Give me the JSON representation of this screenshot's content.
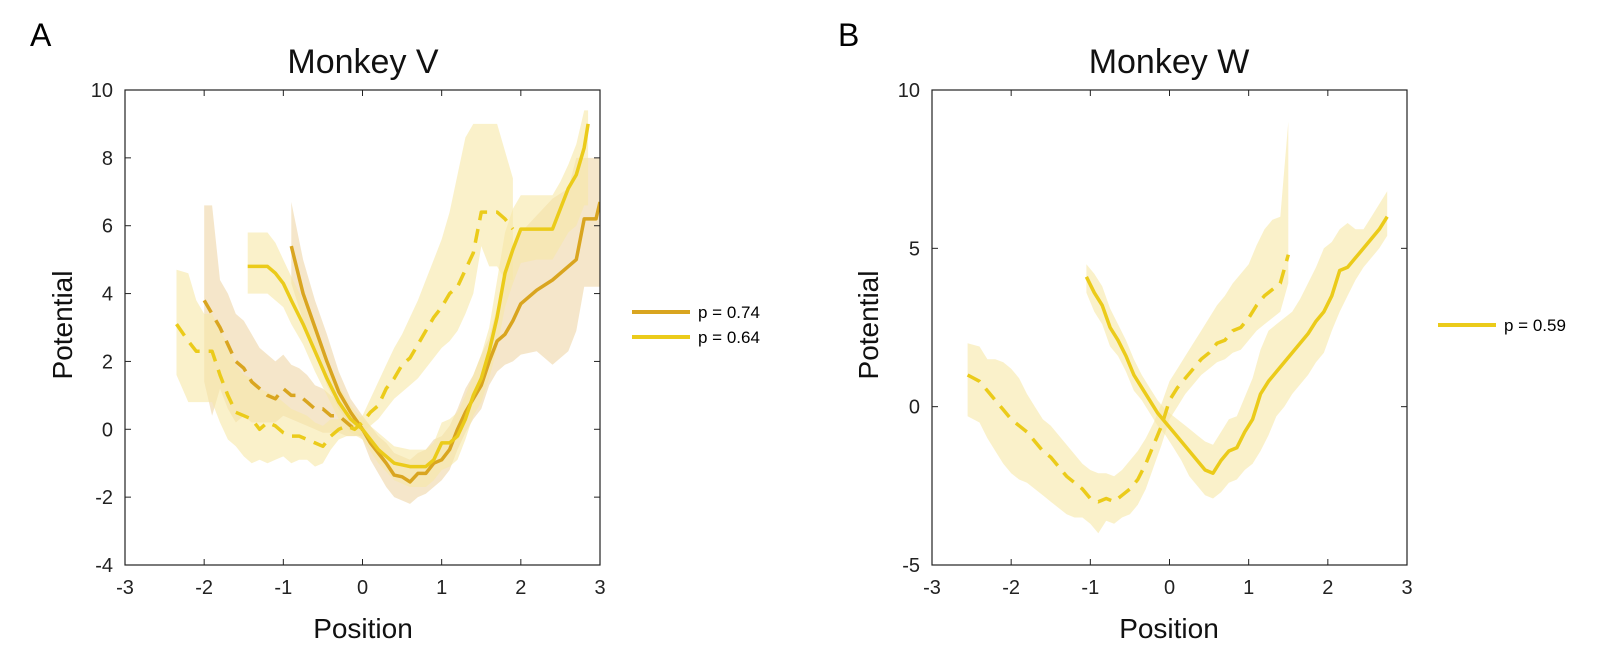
{
  "panels": [
    {
      "label": "A"
    },
    {
      "label": "B"
    }
  ],
  "colors": {
    "dark_gold": "#D9A520",
    "gold": "#EBCB1A",
    "shade_dark": "#EFD6A6",
    "shade_light": "#F7E7A6"
  },
  "chart_data": [
    {
      "type": "line",
      "title": "Monkey V",
      "xlabel": "Position",
      "ylabel": "Potential",
      "xlim": [
        -3,
        3
      ],
      "ylim": [
        -4,
        10
      ],
      "xticks": [
        -3,
        -2,
        -1,
        0,
        1,
        2,
        3
      ],
      "yticks": [
        -4,
        -2,
        0,
        2,
        4,
        6,
        8,
        10
      ],
      "grid": false,
      "legend_placement": "right",
      "series": [
        {
          "name": "p = 0.74",
          "color": "#D9A520",
          "style": "solid",
          "x": [
            -0.9,
            -0.75,
            -0.6,
            -0.45,
            -0.3,
            -0.15,
            0.0,
            0.1,
            0.2,
            0.3,
            0.4,
            0.5,
            0.6,
            0.7,
            0.8,
            0.9,
            1.0,
            1.1,
            1.2,
            1.3,
            1.4,
            1.5,
            1.6,
            1.7,
            1.8,
            1.9,
            2.0,
            2.2,
            2.4,
            2.6,
            2.7,
            2.8,
            2.95,
            3.0
          ],
          "y": [
            5.4,
            4.0,
            3.0,
            2.0,
            1.1,
            0.5,
            0.0,
            -0.4,
            -0.7,
            -1.0,
            -1.35,
            -1.4,
            -1.55,
            -1.3,
            -1.3,
            -1.0,
            -0.9,
            -0.6,
            0.0,
            0.5,
            0.9,
            1.3,
            2.0,
            2.6,
            2.8,
            3.2,
            3.7,
            4.1,
            4.4,
            4.8,
            5.0,
            6.2,
            6.2,
            6.7
          ],
          "band_low": [
            4.3,
            3.2,
            2.3,
            1.3,
            0.6,
            0.1,
            -0.3,
            -0.9,
            -1.3,
            -1.7,
            -2.0,
            -2.1,
            -2.2,
            -2.0,
            -1.9,
            -1.7,
            -1.5,
            -1.2,
            -0.6,
            -0.1,
            0.3,
            0.6,
            1.3,
            1.7,
            1.9,
            2.0,
            2.2,
            2.3,
            1.9,
            2.3,
            2.9,
            4.2,
            4.2,
            4.2
          ],
          "band_high": [
            6.7,
            5.0,
            3.8,
            2.8,
            1.7,
            0.9,
            0.4,
            0.1,
            -0.2,
            -0.4,
            -0.7,
            -0.8,
            -0.9,
            -0.7,
            -0.6,
            -0.3,
            -0.2,
            0.1,
            0.6,
            1.2,
            1.6,
            2.2,
            2.7,
            3.6,
            4.5,
            5.2,
            5.8,
            6.3,
            6.8,
            7.1,
            8.0,
            8.0,
            8.0,
            8.0
          ]
        },
        {
          "name": "",
          "color": "#D9A520",
          "style": "dashed",
          "x": [
            -2.0,
            -1.9,
            -1.8,
            -1.7,
            -1.6,
            -1.5,
            -1.4,
            -1.3,
            -1.2,
            -1.1,
            -1.0,
            -0.9,
            -0.8,
            -0.7,
            -0.6,
            -0.5,
            -0.4,
            -0.3,
            -0.2,
            -0.1,
            0.0
          ],
          "y": [
            3.8,
            3.4,
            3.0,
            2.5,
            2.0,
            1.8,
            1.4,
            1.2,
            1.0,
            0.9,
            1.2,
            1.0,
            1.0,
            0.8,
            0.6,
            0.6,
            0.4,
            0.4,
            0.2,
            0.0,
            0.0
          ],
          "band_low": [
            1.4,
            0.4,
            1.2,
            0.6,
            0.2,
            0.4,
            0.2,
            0.2,
            0.2,
            0.2,
            0.4,
            0.3,
            0.2,
            0.1,
            0.0,
            -0.1,
            -0.1,
            -0.1,
            -0.2,
            -0.2,
            -0.2
          ],
          "band_high": [
            6.6,
            6.6,
            4.4,
            4.0,
            3.4,
            3.2,
            2.8,
            2.4,
            2.2,
            2.0,
            2.2,
            1.9,
            1.8,
            1.6,
            1.3,
            1.2,
            1.0,
            0.8,
            0.5,
            0.3,
            0.2
          ]
        },
        {
          "name": "p = 0.64",
          "color": "#EBCB1A",
          "style": "solid",
          "x": [
            -1.45,
            -1.2,
            -1.1,
            -1.0,
            -0.9,
            -0.75,
            -0.6,
            -0.45,
            -0.3,
            -0.15,
            0.0,
            0.2,
            0.4,
            0.6,
            0.8,
            0.9,
            1.0,
            1.1,
            1.2,
            1.3,
            1.4,
            1.5,
            1.6,
            1.7,
            1.8,
            1.9,
            2.0,
            2.2,
            2.4,
            2.5,
            2.6,
            2.7,
            2.8,
            2.85
          ],
          "y": [
            4.8,
            4.8,
            4.6,
            4.3,
            3.8,
            3.1,
            2.3,
            1.5,
            0.8,
            0.3,
            0.0,
            -0.6,
            -1.0,
            -1.1,
            -1.1,
            -0.9,
            -0.4,
            -0.4,
            -0.2,
            0.3,
            1.0,
            1.5,
            2.3,
            3.3,
            4.6,
            5.3,
            5.9,
            5.9,
            5.9,
            6.5,
            7.1,
            7.5,
            8.3,
            9.0
          ],
          "band_low": [
            4.0,
            4.0,
            3.8,
            3.6,
            3.1,
            2.5,
            1.7,
            1.0,
            0.3,
            -0.1,
            -0.3,
            -1.0,
            -1.5,
            -1.7,
            -1.7,
            -1.5,
            -1.2,
            -1.1,
            -0.9,
            -0.3,
            0.4,
            0.8,
            1.5,
            2.4,
            3.6,
            4.3,
            4.9,
            5.0,
            5.0,
            5.4,
            5.8,
            6.0,
            6.6,
            6.6
          ],
          "band_high": [
            5.8,
            5.8,
            5.5,
            5.0,
            4.5,
            3.8,
            2.9,
            2.0,
            1.3,
            0.7,
            0.3,
            -0.1,
            -0.5,
            -0.6,
            -0.6,
            -0.4,
            0.2,
            0.3,
            0.5,
            1.0,
            1.6,
            2.2,
            3.0,
            4.4,
            5.8,
            6.5,
            6.9,
            6.9,
            6.9,
            7.3,
            7.8,
            8.4,
            9.4,
            9.4
          ]
        },
        {
          "name": "",
          "color": "#EBCB1A",
          "style": "dashed",
          "x": [
            -2.35,
            -2.2,
            -2.1,
            -2.0,
            -1.9,
            -1.8,
            -1.7,
            -1.6,
            -1.5,
            -1.4,
            -1.3,
            -1.2,
            -1.1,
            -1.0,
            -0.9,
            -0.8,
            -0.7,
            -0.6,
            -0.5,
            -0.4,
            -0.3,
            -0.2,
            -0.1,
            0.0,
            0.1,
            0.2,
            0.3,
            0.4,
            0.5,
            0.6,
            0.7,
            0.8,
            0.9,
            1.0,
            1.1,
            1.2,
            1.3,
            1.4,
            1.5,
            1.6,
            1.7,
            1.8,
            1.9
          ],
          "y": [
            3.1,
            2.6,
            2.3,
            2.3,
            2.3,
            1.6,
            1.0,
            0.5,
            0.4,
            0.3,
            0.0,
            0.2,
            0.1,
            -0.1,
            -0.2,
            -0.2,
            -0.3,
            -0.4,
            -0.5,
            -0.2,
            0.0,
            0.1,
            0.0,
            0.2,
            0.5,
            0.7,
            1.2,
            1.5,
            1.9,
            2.1,
            2.5,
            2.9,
            3.3,
            3.6,
            4.0,
            4.2,
            4.7,
            5.2,
            6.4,
            6.4,
            6.4,
            6.2,
            5.9
          ],
          "band_low": [
            1.6,
            0.8,
            0.8,
            0.8,
            0.8,
            0.2,
            -0.3,
            -0.5,
            -0.8,
            -1.0,
            -0.9,
            -1.0,
            -0.9,
            -0.8,
            -1.0,
            -0.9,
            -0.9,
            -1.1,
            -1.0,
            -0.6,
            -0.3,
            -0.2,
            -0.2,
            -0.1,
            0.1,
            0.3,
            0.6,
            0.9,
            1.1,
            1.3,
            1.5,
            1.8,
            2.1,
            2.4,
            2.6,
            2.9,
            3.4,
            4.0,
            5.4,
            4.8,
            4.8,
            4.4,
            4.4
          ],
          "band_high": [
            4.7,
            4.6,
            3.8,
            3.4,
            3.4,
            2.9,
            2.5,
            1.9,
            1.6,
            1.5,
            1.2,
            1.1,
            1.0,
            0.8,
            0.6,
            0.5,
            0.4,
            0.2,
            0.1,
            0.3,
            0.3,
            0.3,
            0.2,
            0.4,
            0.9,
            1.4,
            1.9,
            2.4,
            2.8,
            3.3,
            3.8,
            4.4,
            5.0,
            5.6,
            6.4,
            7.5,
            8.6,
            9.0,
            9.0,
            9.0,
            9.0,
            8.2,
            7.4
          ]
        }
      ],
      "legend": [
        {
          "label": "p = 0.74",
          "color": "#D9A520"
        },
        {
          "label": "p = 0.64",
          "color": "#EBCB1A"
        }
      ]
    },
    {
      "type": "line",
      "title": "Monkey W",
      "xlabel": "Position",
      "ylabel": "Potential",
      "xlim": [
        -3,
        3
      ],
      "ylim": [
        -5,
        10
      ],
      "xticks": [
        -3,
        -2,
        -1,
        0,
        1,
        2,
        3
      ],
      "yticks": [
        -5,
        0,
        5,
        10
      ],
      "grid": false,
      "legend_placement": "right",
      "series": [
        {
          "name": "p = 0.59",
          "color": "#EBCB1A",
          "style": "solid",
          "x": [
            -1.05,
            -0.95,
            -0.85,
            -0.75,
            -0.65,
            -0.55,
            -0.45,
            -0.35,
            -0.25,
            -0.15,
            -0.05,
            0.05,
            0.15,
            0.25,
            0.35,
            0.45,
            0.55,
            0.65,
            0.75,
            0.85,
            0.95,
            1.05,
            1.15,
            1.25,
            1.35,
            1.45,
            1.55,
            1.65,
            1.75,
            1.85,
            1.95,
            2.05,
            2.15,
            2.25,
            2.35,
            2.45,
            2.55,
            2.65,
            2.75
          ],
          "y": [
            4.1,
            3.6,
            3.2,
            2.5,
            2.1,
            1.6,
            1.0,
            0.6,
            0.2,
            -0.2,
            -0.5,
            -0.8,
            -1.1,
            -1.4,
            -1.7,
            -2.0,
            -2.1,
            -1.7,
            -1.4,
            -1.3,
            -0.8,
            -0.4,
            0.4,
            0.8,
            1.1,
            1.4,
            1.7,
            2.0,
            2.3,
            2.7,
            3.0,
            3.5,
            4.3,
            4.4,
            4.7,
            5.0,
            5.3,
            5.6,
            6.0
          ],
          "band_low": [
            3.6,
            3.0,
            2.6,
            1.9,
            1.6,
            1.1,
            0.5,
            0.2,
            -0.2,
            -0.6,
            -0.9,
            -1.3,
            -1.7,
            -2.2,
            -2.5,
            -2.8,
            -2.9,
            -2.7,
            -2.4,
            -2.3,
            -2.0,
            -1.8,
            -1.4,
            -0.9,
            -0.3,
            0.0,
            0.4,
            0.7,
            1.0,
            1.4,
            1.7,
            2.4,
            3.0,
            3.5,
            4.0,
            4.4,
            4.7,
            5.0,
            5.4
          ],
          "band_high": [
            4.5,
            4.2,
            3.8,
            3.1,
            2.6,
            2.1,
            1.5,
            1.0,
            0.6,
            0.2,
            -0.1,
            -0.3,
            -0.5,
            -0.7,
            -0.9,
            -1.1,
            -1.2,
            -0.8,
            -0.4,
            -0.3,
            0.3,
            0.9,
            1.8,
            2.4,
            2.6,
            2.8,
            3.0,
            3.4,
            3.9,
            4.4,
            5.0,
            5.2,
            5.6,
            5.8,
            5.6,
            5.6,
            6.0,
            6.4,
            6.8
          ]
        },
        {
          "name": "",
          "color": "#EBCB1A",
          "style": "dashed",
          "x": [
            -2.55,
            -2.4,
            -2.3,
            -2.2,
            -2.1,
            -2.0,
            -1.9,
            -1.8,
            -1.7,
            -1.6,
            -1.5,
            -1.4,
            -1.3,
            -1.2,
            -1.1,
            -1.0,
            -0.9,
            -0.8,
            -0.7,
            -0.6,
            -0.5,
            -0.4,
            -0.3,
            -0.2,
            -0.1,
            0.0,
            0.1,
            0.2,
            0.3,
            0.4,
            0.5,
            0.6,
            0.7,
            0.8,
            0.9,
            1.0,
            1.1,
            1.2,
            1.3,
            1.4,
            1.5
          ],
          "y": [
            1.0,
            0.8,
            0.5,
            0.2,
            -0.1,
            -0.4,
            -0.6,
            -0.8,
            -1.1,
            -1.4,
            -1.6,
            -1.9,
            -2.2,
            -2.4,
            -2.6,
            -2.9,
            -3.0,
            -2.9,
            -3.0,
            -2.8,
            -2.6,
            -2.3,
            -1.8,
            -1.2,
            -0.6,
            0.2,
            0.6,
            0.9,
            1.2,
            1.5,
            1.7,
            2.0,
            2.1,
            2.4,
            2.5,
            2.8,
            3.2,
            3.5,
            3.7,
            3.9,
            4.8
          ],
          "band_low": [
            -0.3,
            -0.5,
            -1.0,
            -1.4,
            -1.8,
            -2.1,
            -2.3,
            -2.4,
            -2.6,
            -2.8,
            -3.0,
            -3.2,
            -3.4,
            -3.5,
            -3.5,
            -3.7,
            -4.0,
            -3.6,
            -3.7,
            -3.5,
            -3.4,
            -3.1,
            -2.6,
            -1.9,
            -1.2,
            -0.4,
            0.0,
            0.4,
            0.7,
            1.0,
            1.2,
            1.4,
            1.5,
            1.7,
            1.8,
            2.1,
            2.4,
            2.6,
            2.8,
            3.0,
            3.9
          ],
          "band_high": [
            2.0,
            1.9,
            1.5,
            1.5,
            1.4,
            1.2,
            0.9,
            0.4,
            0.0,
            -0.4,
            -0.6,
            -0.9,
            -1.2,
            -1.5,
            -1.8,
            -2.0,
            -2.1,
            -2.1,
            -2.2,
            -2.0,
            -1.7,
            -1.4,
            -1.0,
            -0.5,
            0.1,
            0.8,
            1.2,
            1.6,
            2.0,
            2.4,
            2.8,
            3.2,
            3.5,
            3.9,
            4.2,
            4.5,
            5.1,
            5.6,
            5.9,
            6.0,
            9.0
          ]
        }
      ],
      "legend": [
        {
          "label": "p = 0.59",
          "color": "#EBCB1A"
        }
      ]
    }
  ]
}
